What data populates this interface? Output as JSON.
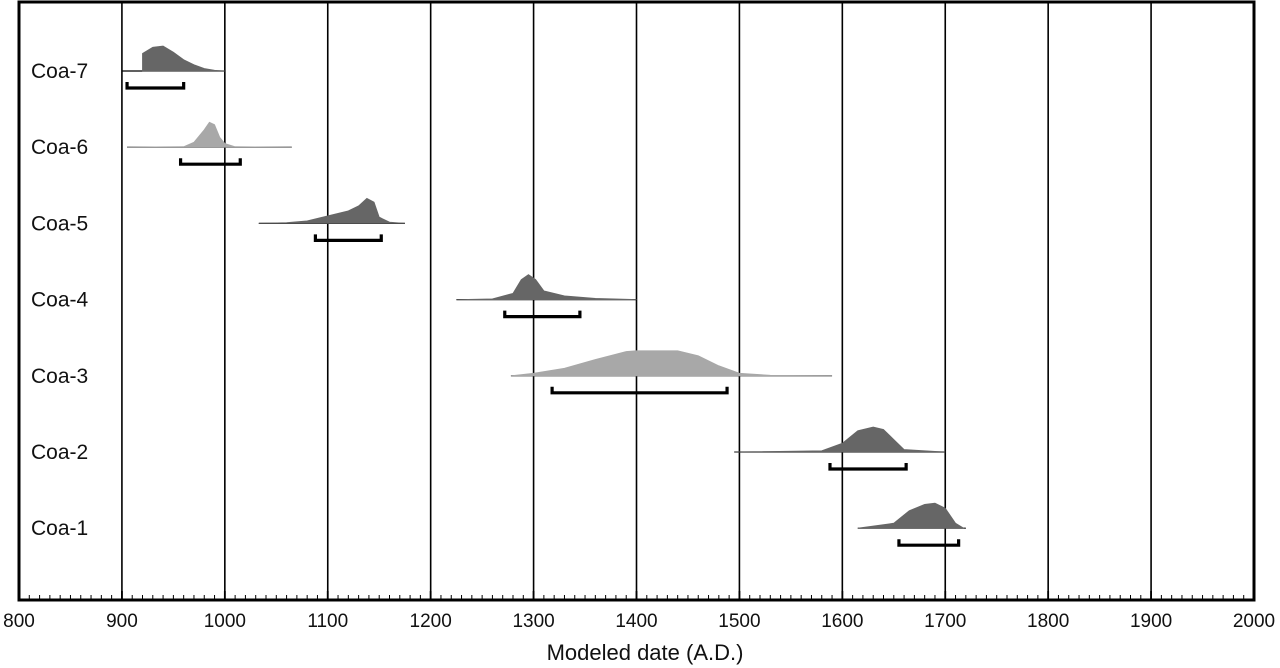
{
  "chart_data": {
    "type": "area",
    "xlabel": "Modeled date (A.D.)",
    "xlim": [
      800,
      2000
    ],
    "xticks": [
      "800",
      "900",
      "1000",
      "1100",
      "1200",
      "1300",
      "1400",
      "1500",
      "1600",
      "1700",
      "1800",
      "1900",
      "2000"
    ],
    "grid": "vertical lines every 100 years",
    "colors": {
      "dark": "#666666",
      "light": "#a8a8a8",
      "line": "#000000"
    },
    "series": [
      {
        "name": "Coa-7",
        "shade": "dark",
        "x": [
          920,
          930,
          940,
          950,
          960,
          970,
          980,
          990,
          1000
        ],
        "y": [
          0.7,
          0.95,
          1.0,
          0.75,
          0.45,
          0.25,
          0.1,
          0.03,
          0.0
        ],
        "range_start": 900,
        "range_end": 1000,
        "bracket_start": 905,
        "bracket_end": 960
      },
      {
        "name": "Coa-6",
        "shade": "light",
        "x": [
          905,
          960,
          970,
          980,
          985,
          990,
          995,
          1000,
          1010,
          1065
        ],
        "y": [
          0.0,
          0.02,
          0.2,
          0.7,
          1.0,
          0.9,
          0.4,
          0.15,
          0.02,
          0.0
        ],
        "range_start": 905,
        "range_end": 1065,
        "bracket_start": 957,
        "bracket_end": 1015
      },
      {
        "name": "Coa-5",
        "shade": "dark",
        "x": [
          1033,
          1060,
          1080,
          1100,
          1120,
          1130,
          1138,
          1145,
          1150,
          1160,
          1175
        ],
        "y": [
          0.0,
          0.03,
          0.1,
          0.3,
          0.5,
          0.7,
          1.0,
          0.85,
          0.25,
          0.05,
          0.0
        ],
        "range_start": 1033,
        "range_end": 1175,
        "bracket_start": 1088,
        "bracket_end": 1152
      },
      {
        "name": "Coa-4",
        "shade": "dark",
        "x": [
          1225,
          1260,
          1280,
          1288,
          1295,
          1302,
          1310,
          1330,
          1360,
          1400
        ],
        "y": [
          0.0,
          0.03,
          0.25,
          0.8,
          1.0,
          0.8,
          0.35,
          0.15,
          0.05,
          0.0
        ],
        "range_start": 1225,
        "range_end": 1400,
        "bracket_start": 1272,
        "bracket_end": 1345
      },
      {
        "name": "Coa-3",
        "shade": "light",
        "x": [
          1278,
          1300,
          1330,
          1360,
          1390,
          1400,
          1440,
          1460,
          1480,
          1500,
          1530,
          1590
        ],
        "y": [
          0.0,
          0.1,
          0.3,
          0.65,
          0.97,
          1.0,
          1.0,
          0.8,
          0.4,
          0.1,
          0.02,
          0.0
        ],
        "range_start": 1278,
        "range_end": 1590,
        "bracket_start": 1318,
        "bracket_end": 1488
      },
      {
        "name": "Coa-2",
        "shade": "dark",
        "x": [
          1495,
          1580,
          1600,
          1615,
          1630,
          1640,
          1650,
          1660,
          1700
        ],
        "y": [
          0.0,
          0.05,
          0.35,
          0.85,
          1.0,
          0.9,
          0.5,
          0.1,
          0.0
        ],
        "range_start": 1495,
        "range_end": 1700,
        "bracket_start": 1588,
        "bracket_end": 1662
      },
      {
        "name": "Coa-1",
        "shade": "dark",
        "x": [
          1615,
          1650,
          1665,
          1680,
          1690,
          1700,
          1710,
          1718
        ],
        "y": [
          0.0,
          0.2,
          0.7,
          0.95,
          1.0,
          0.8,
          0.2,
          0.0
        ],
        "range_start": 1615,
        "range_end": 1720,
        "bracket_start": 1655,
        "bracket_end": 1713
      }
    ]
  }
}
